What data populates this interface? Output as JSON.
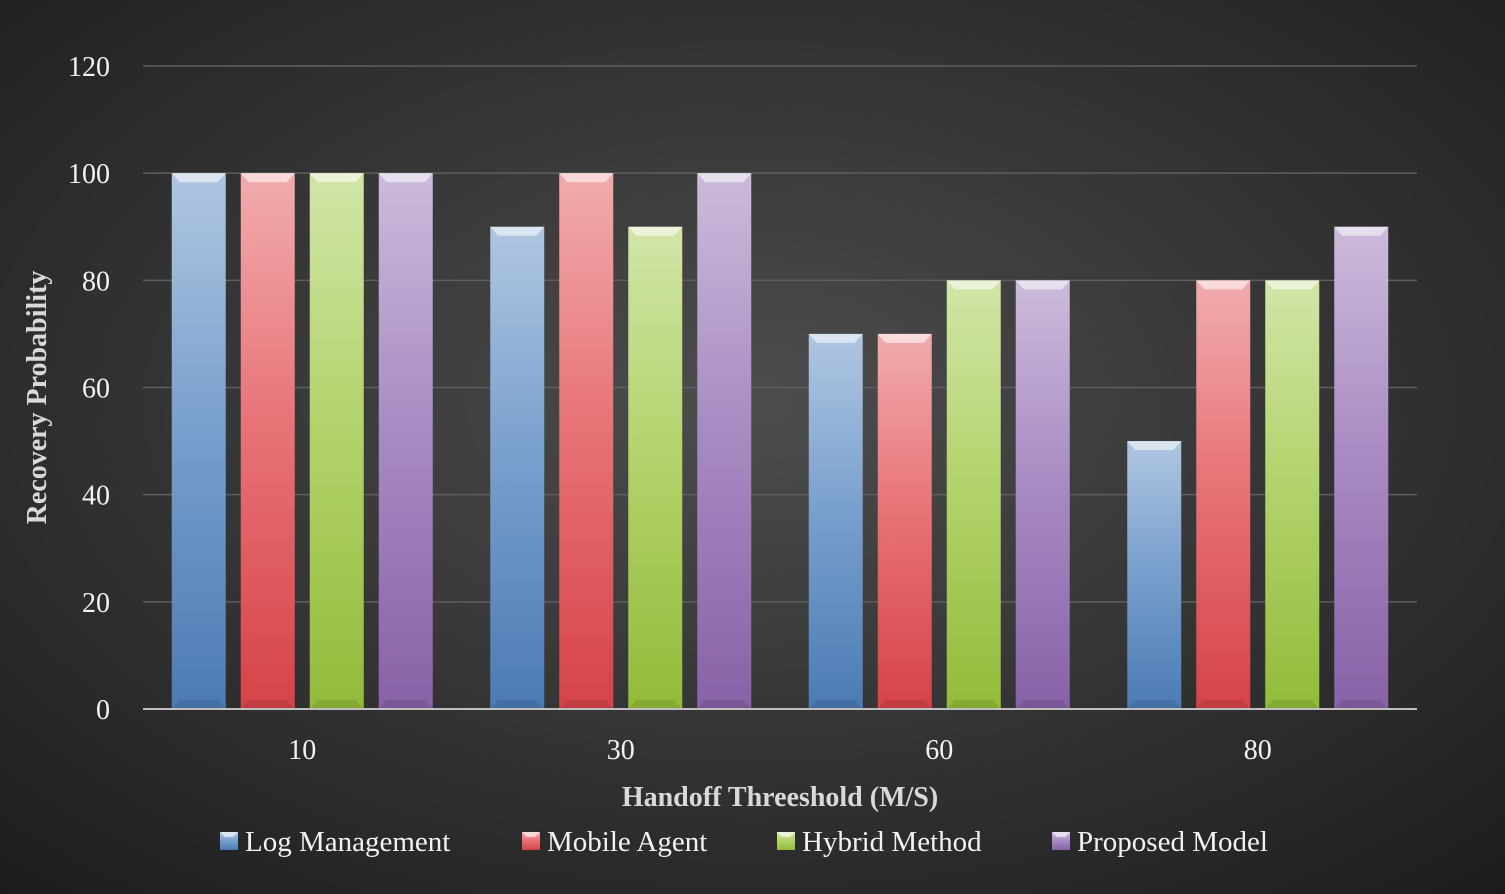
{
  "chart_data": {
    "type": "bar",
    "title": "",
    "xlabel": "Handoff Threeshold (M/S)",
    "ylabel": "Recovery Probability",
    "categories": [
      "10",
      "30",
      "60",
      "80"
    ],
    "series": [
      {
        "name": "Log Management",
        "values": [
          100,
          90,
          70,
          50
        ],
        "color": "#4f81bd"
      },
      {
        "name": "Mobile Agent",
        "values": [
          100,
          100,
          70,
          80
        ],
        "color": "#e0474c"
      },
      {
        "name": "Hybrid Method",
        "values": [
          100,
          90,
          80,
          80
        ],
        "color": "#9bc53d"
      },
      {
        "name": "Proposed Model",
        "values": [
          100,
          100,
          80,
          90
        ],
        "color": "#8e67b0"
      }
    ],
    "ylim": [
      0,
      120
    ],
    "yticks": [
      0,
      20,
      40,
      60,
      80,
      100,
      120
    ],
    "grid": true,
    "legend": "bottom"
  }
}
